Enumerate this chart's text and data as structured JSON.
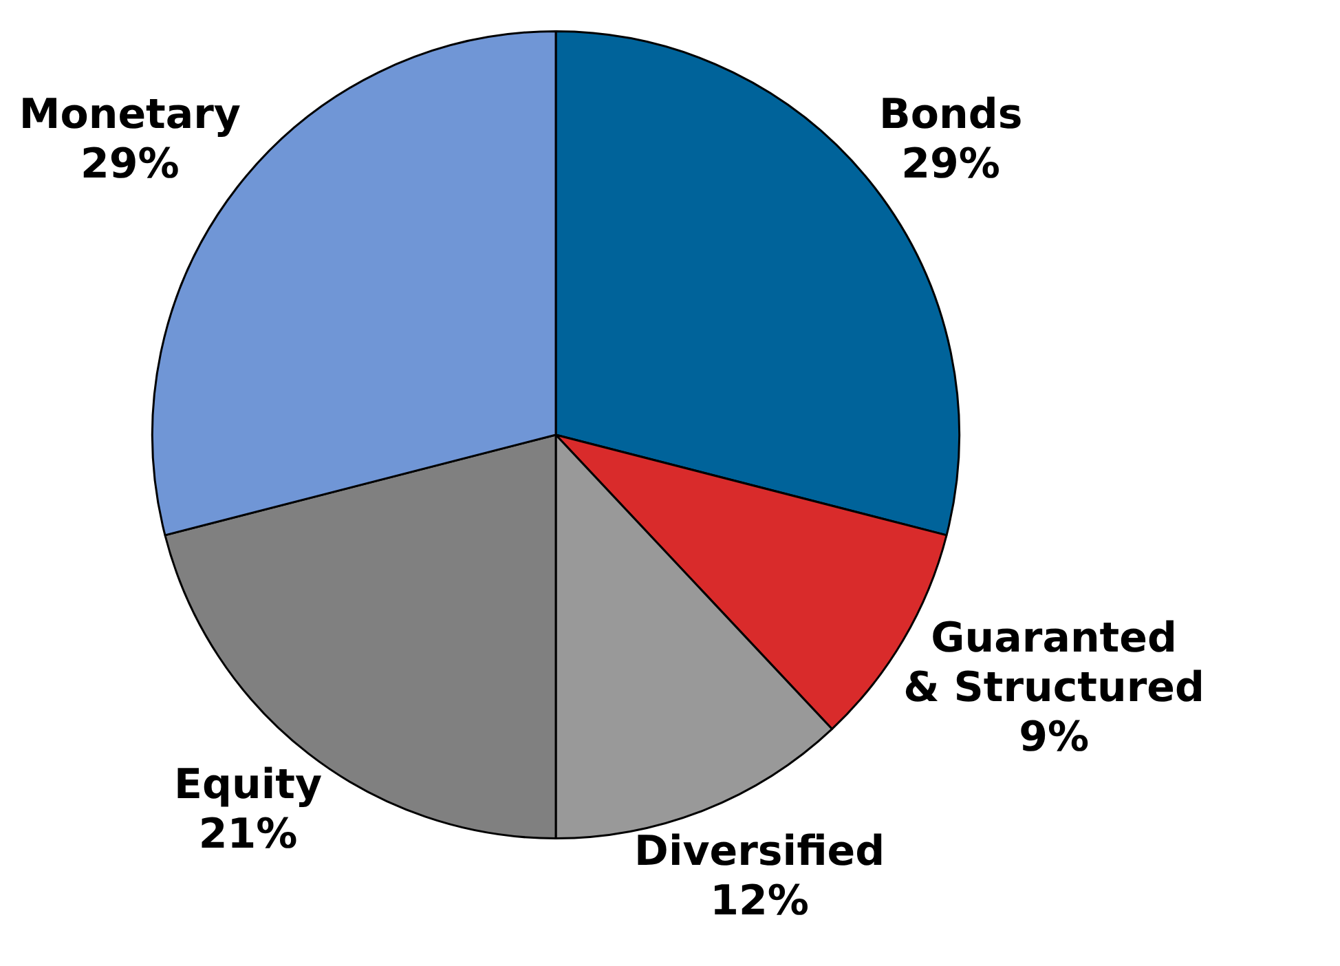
{
  "chart_data": {
    "type": "pie",
    "categories": [
      "Bonds",
      "Guaranted\n& Structured",
      "Diversified",
      "Equity",
      "Monetary"
    ],
    "values": [
      29,
      9,
      12,
      21,
      29
    ],
    "colors": [
      "#00639a",
      "#d92b2b",
      "#999999",
      "#808080",
      "#7096d6"
    ],
    "value_labels": [
      "29%",
      "9%",
      "12%",
      "21%",
      "29%"
    ],
    "legend": false
  }
}
